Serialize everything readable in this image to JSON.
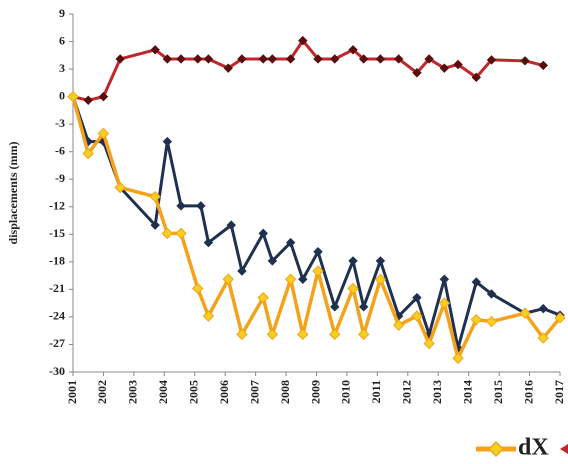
{
  "chart_data": {
    "type": "line",
    "y_label": "displacements (mm)",
    "xlim": [
      2001,
      2017
    ],
    "xticks": [
      2001,
      2002,
      2003,
      2004,
      2005,
      2006,
      2007,
      2008,
      2009,
      2010,
      2011,
      2012,
      2013,
      2014,
      2015,
      2016,
      2017
    ],
    "ylim": [
      -30,
      9
    ],
    "yticks": [
      9,
      6,
      3,
      0,
      -3,
      -6,
      -9,
      -12,
      -15,
      -18,
      -21,
      -24,
      -27,
      -30
    ],
    "grid": false,
    "legend": "bottom right",
    "series": [
      {
        "color": "#c0262c",
        "marker_color": "#5a0d0d",
        "x": [
          2001,
          2001.5,
          2002,
          2002.55,
          2003.7,
          2004.1,
          2004.55,
          2005.1,
          2005.45,
          2006.1,
          2006.55,
          2007.25,
          2007.55,
          2008.15,
          2008.55,
          2009.05,
          2009.6,
          2010.2,
          2010.55,
          2011.1,
          2011.7,
          2012.3,
          2012.7,
          2013.2,
          2013.65,
          2014.25,
          2014.75,
          2015.85,
          2016.45
        ],
        "values": [
          0,
          -0.4,
          0,
          4.1,
          5.1,
          4.1,
          4.1,
          4.1,
          4.1,
          3.1,
          4.1,
          4.1,
          4.1,
          4.1,
          6.1,
          4.1,
          4.1,
          5.1,
          4.1,
          4.1,
          4.1,
          2.6,
          4.1,
          3.1,
          3.5,
          2.1,
          4.0,
          3.9,
          3.4
        ]
      },
      {
        "color": "#1f3050",
        "marker_color": "#1f3050",
        "x": [
          2001,
          2001.5,
          2002,
          2002.55,
          2003.7,
          2004.1,
          2004.55,
          2005.2,
          2005.45,
          2006.2,
          2006.55,
          2007.25,
          2007.55,
          2008.15,
          2008.55,
          2009.05,
          2009.6,
          2010.2,
          2010.55,
          2011.1,
          2011.7,
          2012.3,
          2012.7,
          2013.2,
          2013.65,
          2014.25,
          2014.75,
          2015.85,
          2016.45,
          2017
        ],
        "values": [
          0,
          -4.9,
          -4.9,
          -9.9,
          -14,
          -4.9,
          -11.9,
          -11.9,
          -15.9,
          -14,
          -19,
          -14.9,
          -17.9,
          -15.9,
          -19.9,
          -16.9,
          -22.9,
          -17.9,
          -22.9,
          -17.9,
          -23.9,
          -21.9,
          -25.9,
          -19.9,
          -27.4,
          -20.2,
          -21.5,
          -23.6,
          -23.1,
          -23.8
        ]
      },
      {
        "name": "dX",
        "color": "#f5a21a",
        "marker_color": "#f5d020",
        "x": [
          2001,
          2001.5,
          2002,
          2002.55,
          2003.7,
          2004.1,
          2004.55,
          2005.1,
          2005.45,
          2006.1,
          2006.55,
          2007.25,
          2007.55,
          2008.15,
          2008.55,
          2009.05,
          2009.6,
          2010.2,
          2010.55,
          2011.1,
          2011.7,
          2012.3,
          2012.7,
          2013.2,
          2013.65,
          2014.25,
          2014.75,
          2015.85,
          2016.45,
          2017
        ],
        "values": [
          0,
          -6.2,
          -4.0,
          -9.9,
          -10.9,
          -14.9,
          -14.9,
          -20.9,
          -23.9,
          -19.9,
          -25.9,
          -21.9,
          -25.9,
          -19.9,
          -25.9,
          -19,
          -25.9,
          -20.9,
          -25.9,
          -19.9,
          -24.9,
          -23.9,
          -26.9,
          -22.5,
          -28.5,
          -24.3,
          -24.5,
          -23.6,
          -26.3,
          -24.1
        ]
      }
    ]
  }
}
